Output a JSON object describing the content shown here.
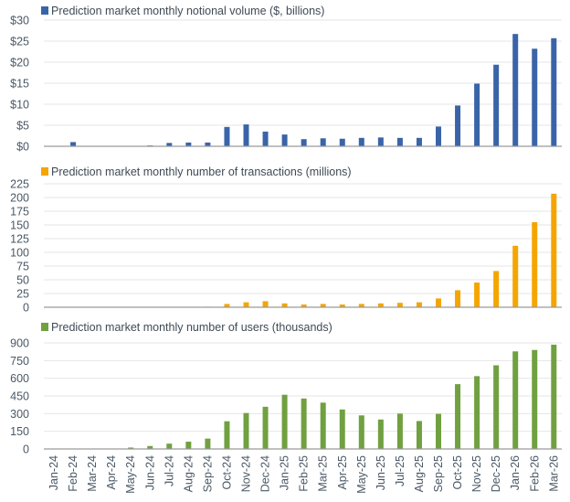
{
  "chart_data": [
    {
      "type": "bar",
      "title": "Prediction market monthly notional volume ($, billions)",
      "color": "#3a64a8",
      "ylim": [
        0,
        30
      ],
      "yticks": [
        0,
        5,
        10,
        15,
        20,
        25,
        30
      ],
      "ytick_labels": [
        "$0",
        "$5",
        "$10",
        "$15",
        "$20",
        "$25",
        "$30"
      ],
      "values": [
        0,
        1.0,
        0,
        0,
        0,
        0.2,
        0.8,
        0.9,
        0.9,
        4.6,
        5.2,
        3.5,
        2.8,
        1.7,
        1.9,
        1.8,
        2.0,
        2.1,
        2.0,
        2.0,
        4.7,
        9.7,
        14.9,
        19.4,
        26.7,
        23.2,
        25.7
      ]
    },
    {
      "type": "bar",
      "title": "Prediction market monthly number of transactions (millions)",
      "color": "#f5a500",
      "ylim": [
        0,
        225
      ],
      "yticks": [
        0,
        25,
        50,
        75,
        100,
        125,
        150,
        175,
        200,
        225
      ],
      "ytick_labels": [
        "0",
        "25",
        "50",
        "75",
        "100",
        "125",
        "150",
        "175",
        "200",
        "225"
      ],
      "values": [
        0,
        0,
        0,
        0,
        0,
        0,
        0,
        0,
        1,
        6,
        9,
        11,
        7,
        5,
        6,
        5,
        6,
        7,
        8,
        9,
        16,
        31,
        45,
        66,
        112,
        155,
        207
      ]
    },
    {
      "type": "bar",
      "title": "Prediction market monthly number of users (thousands)",
      "color": "#70a040",
      "ylim": [
        0,
        900
      ],
      "yticks": [
        0,
        150,
        300,
        450,
        600,
        750,
        900
      ],
      "ytick_labels": [
        "0",
        "150",
        "300",
        "450",
        "600",
        "750",
        "900"
      ],
      "values": [
        0,
        0,
        0,
        0,
        12,
        25,
        45,
        62,
        88,
        235,
        305,
        358,
        460,
        428,
        393,
        335,
        285,
        250,
        300,
        237,
        298,
        550,
        618,
        710,
        828,
        840,
        885
      ]
    }
  ],
  "categories": [
    "Jan-24",
    "Feb-24",
    "Mar-24",
    "Apr-24",
    "May-24",
    "Jun-24",
    "Jul-24",
    "Aug-24",
    "Sep-24",
    "Oct-24",
    "Nov-24",
    "Dec-24",
    "Jan-25",
    "Feb-25",
    "Mar-25",
    "Apr-25",
    "May-25",
    "Jun-25",
    "Jul-25",
    "Aug-25",
    "Sep-25",
    "Oct-25",
    "Nov-25",
    "Dec-25",
    "Jan-26",
    "Feb-26",
    "Mar-26"
  ]
}
